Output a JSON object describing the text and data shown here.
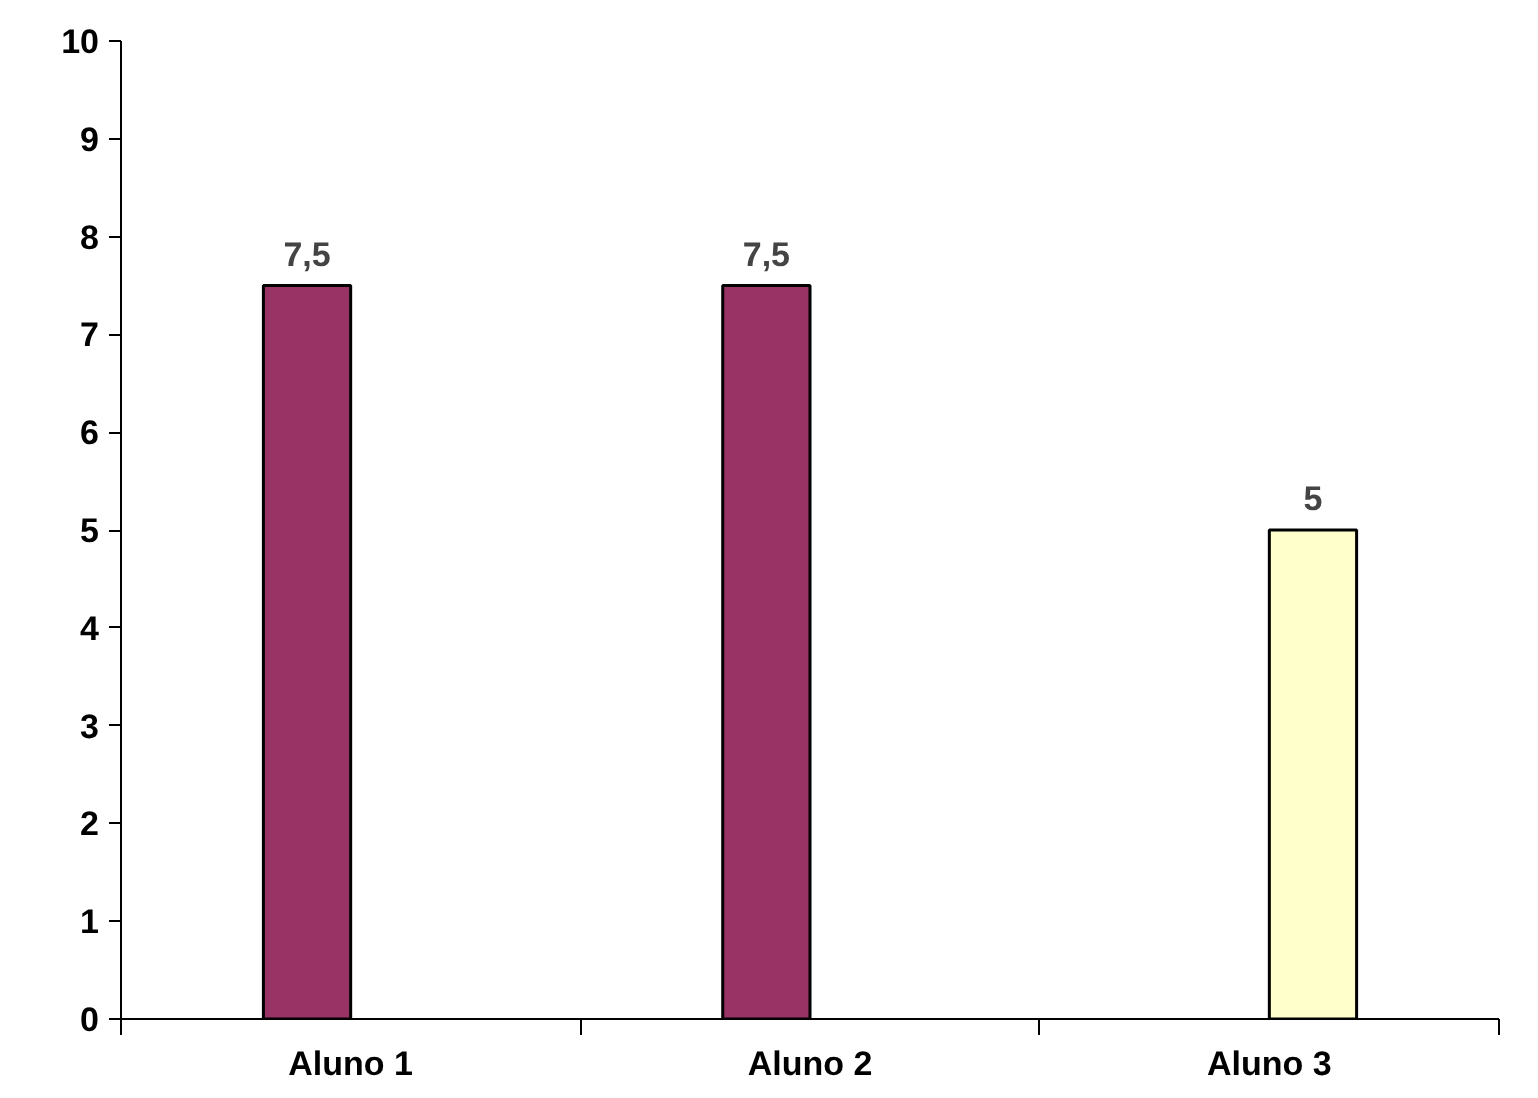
{
  "chart_data": {
    "type": "bar",
    "categories": [
      "Aluno 1",
      "Aluno 2",
      "Aluno 3"
    ],
    "series": [
      {
        "color": "#993366",
        "values": [
          7.5,
          7.5,
          null
        ],
        "value_labels": [
          "7,5",
          "7,5",
          null
        ]
      },
      {
        "color": "#ffffcc",
        "values": [
          null,
          null,
          5
        ],
        "value_labels": [
          null,
          null,
          "5"
        ]
      }
    ],
    "ylim": [
      0,
      10
    ],
    "yticks": [
      0,
      1,
      2,
      3,
      4,
      5,
      6,
      7,
      8,
      9,
      10
    ],
    "grid": false
  }
}
